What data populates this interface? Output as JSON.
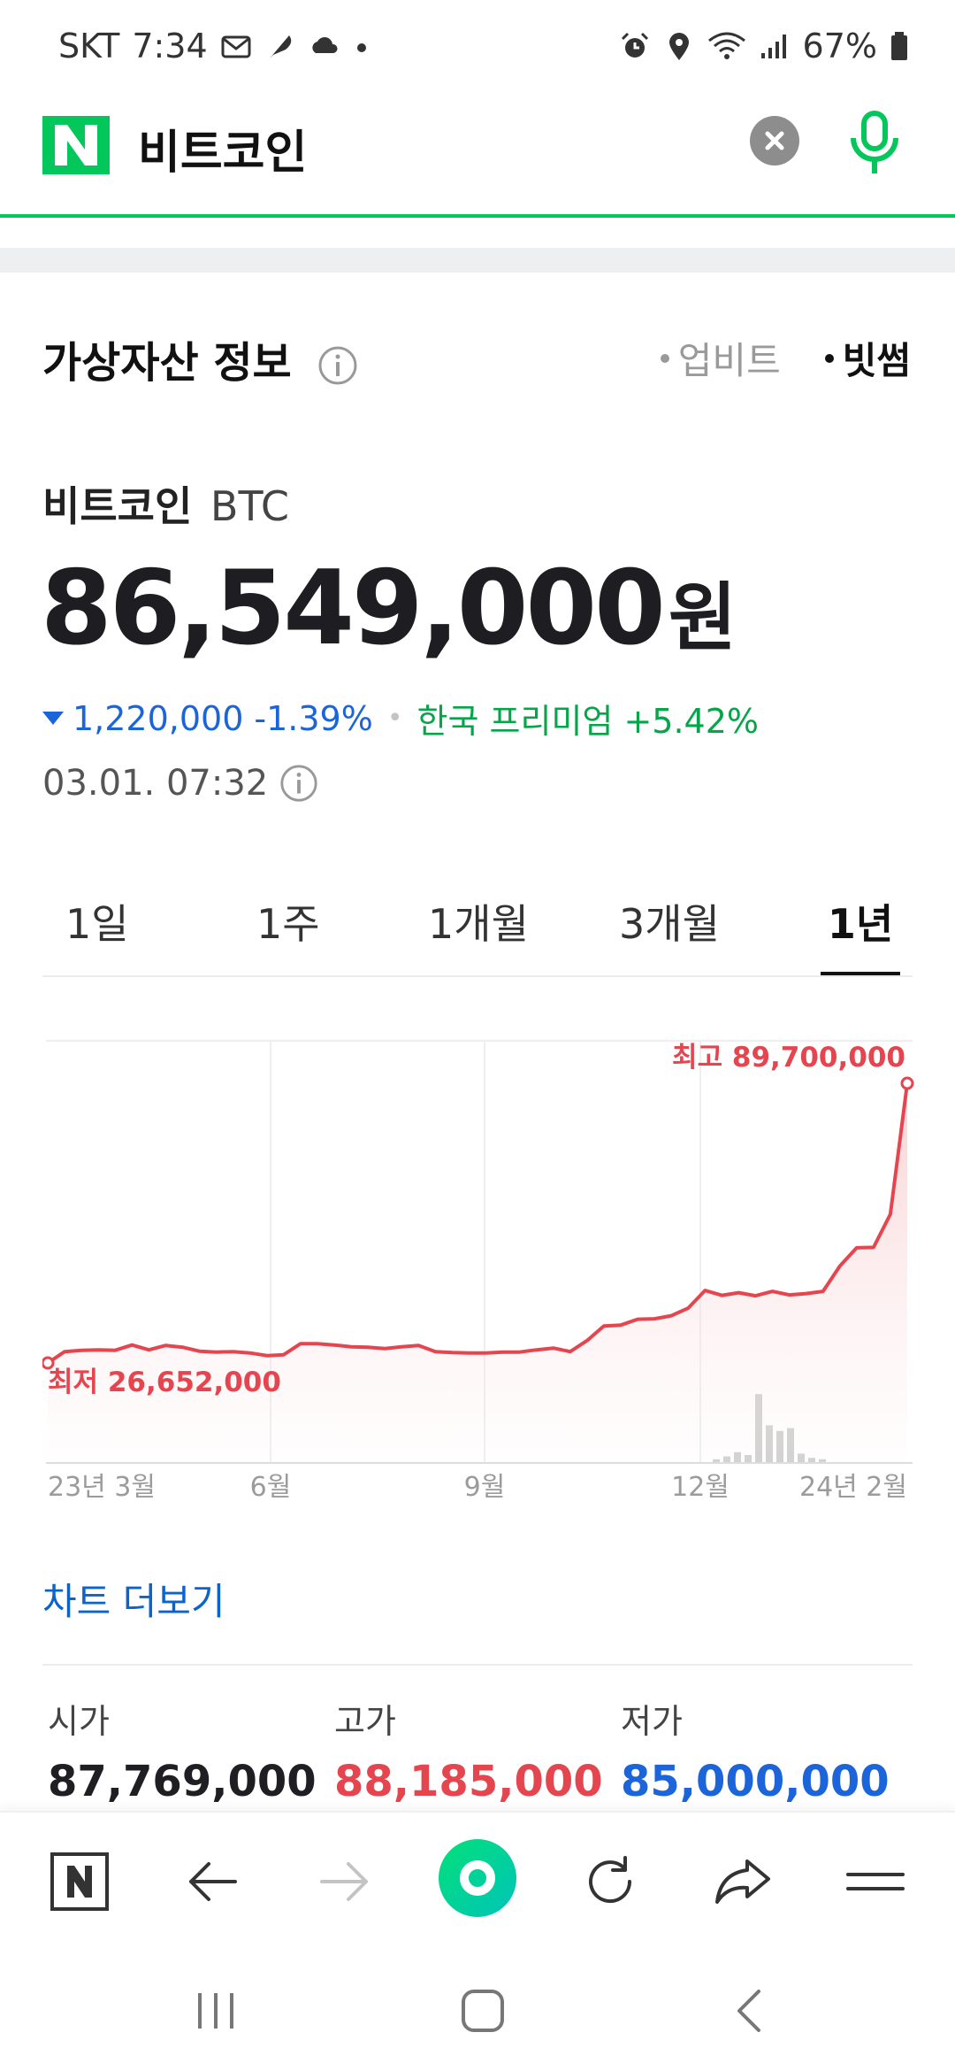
{
  "status_bar": {
    "carrier": "SKT",
    "time": "7:34",
    "battery": "67%",
    "icons_left": [
      "mail-icon",
      "feather-icon",
      "cloud-icon",
      "dot-icon"
    ],
    "icons_right": [
      "alarm-icon",
      "location-icon",
      "wifi-icon",
      "signal-icon",
      "battery-icon"
    ]
  },
  "search": {
    "query": "비트코인"
  },
  "card": {
    "title": "가상자산 정보",
    "exchanges": [
      {
        "label": "업비트",
        "active": false
      },
      {
        "label": "빗썸",
        "active": true
      }
    ],
    "coin_name_kr": "비트코인",
    "coin_symbol": "BTC",
    "price": "86,549,000",
    "price_unit": "원",
    "change_amount": "1,220,000",
    "change_percent": "-1.39%",
    "premium_label": "한국 프리미엄 +5.42%",
    "timestamp": "03.01. 07:32"
  },
  "period_tabs": [
    {
      "label": "1일",
      "active": false
    },
    {
      "label": "1주",
      "active": false
    },
    {
      "label": "1개월",
      "active": false
    },
    {
      "label": "3개월",
      "active": false
    },
    {
      "label": "1년",
      "active": true
    }
  ],
  "chart_data": {
    "type": "area",
    "title": "",
    "xlabel": "",
    "ylabel": "",
    "x_tick_labels": [
      "23년 3월",
      "6월",
      "9월",
      "12월",
      "24년 2월"
    ],
    "ylim": [
      26652000,
      89700000
    ],
    "max_label": "최고 89,700,000",
    "min_label": "최저 26,652,000",
    "series": [
      {
        "values": [
          26652000,
          29200000,
          29500000,
          29600000,
          29500000,
          30700000,
          29600000,
          30600000,
          30200000,
          29300000,
          29100000,
          29200000,
          28900000,
          28300000,
          28500000,
          31000000,
          31000000,
          30700000,
          30300000,
          30200000,
          29900000,
          30300000,
          30600000,
          29200000,
          29000000,
          28900000,
          28900000,
          29100000,
          29100000,
          29600000,
          30000000,
          29200000,
          31700000,
          35000000,
          35200000,
          36500000,
          36600000,
          37300000,
          39000000,
          43000000,
          41900000,
          42500000,
          41800000,
          42800000,
          42000000,
          42300000,
          42800000,
          48500000,
          52600000,
          52700000,
          60200000,
          89700000
        ]
      }
    ],
    "grid": true,
    "volume_bars": [
      0.02,
      0.04,
      0.07,
      0.05,
      0.48,
      0.26,
      0.22,
      0.24,
      0.06,
      0.03,
      0.02
    ]
  },
  "more_link": "차트 더보기",
  "ohl": [
    {
      "label": "시가",
      "value": "87,769,000",
      "color": "#1e1e23"
    },
    {
      "label": "고가",
      "value": "88,185,000",
      "color": "#e5454e"
    },
    {
      "label": "저가",
      "value": "85,000,000",
      "color": "#1b64da"
    }
  ],
  "toolbar": [
    "naver-home-icon",
    "back-arrow-icon",
    "forward-arrow-icon",
    "green-dot-button",
    "refresh-icon",
    "share-icon",
    "menu-icon"
  ],
  "navbar": [
    "recent-apps-icon",
    "home-icon",
    "back-icon"
  ],
  "colors": {
    "accent": "#03c75a",
    "up": "#e5454e",
    "down": "#1b64da",
    "premium": "#06a54a"
  }
}
